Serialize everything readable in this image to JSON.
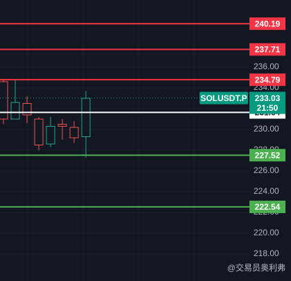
{
  "chart_data": {
    "type": "candlestick",
    "categories": [
      null,
      null,
      null,
      null,
      null,
      null,
      null,
      null
    ],
    "open": [
      234.6,
      231.0,
      232.5,
      231.0,
      228.6,
      230.5,
      230.2,
      229.3
    ],
    "high": [
      234.8,
      234.8,
      233.2,
      231.2,
      231.2,
      231.0,
      230.8,
      233.7
    ],
    "low": [
      230.5,
      231.0,
      230.6,
      228.0,
      228.3,
      229.0,
      228.7,
      227.3
    ],
    "close": [
      231.0,
      232.6,
      231.4,
      228.5,
      230.3,
      230.3,
      229.2,
      233.0
    ],
    "up_color": "#26a69a",
    "down_color": "#ef5350",
    "ylim": [
      215.4,
      242.47
    ],
    "yticks": [
      {
        "value": 236,
        "label": "236.00"
      },
      {
        "value": 234,
        "label": "234.00"
      },
      {
        "value": 232,
        "label": "232.00"
      },
      {
        "value": 230,
        "label": "230.00"
      },
      {
        "value": 228,
        "label": "228.00"
      },
      {
        "value": 226,
        "label": "226.00"
      },
      {
        "value": 224,
        "label": "224.00"
      },
      {
        "value": 222,
        "label": "222.00"
      },
      {
        "value": 220,
        "label": "220.00"
      },
      {
        "value": 218,
        "label": "218.00"
      }
    ],
    "grid": true,
    "price_lines": [
      {
        "value": 240.19,
        "color": "#f23645"
      },
      {
        "value": 237.71,
        "color": "#f23645"
      },
      {
        "value": 234.79,
        "color": "#f23645"
      },
      {
        "value": 231.64,
        "color": "#ffffff"
      },
      {
        "value": 227.52,
        "color": "#4caf50"
      },
      {
        "value": 222.54,
        "color": "#4caf50"
      }
    ],
    "last_price": {
      "value": 233.03,
      "symbol": "SOLUSDT.P",
      "countdown": "21:50",
      "color": "#089981"
    },
    "watermark": "@交易员奥利弗"
  }
}
